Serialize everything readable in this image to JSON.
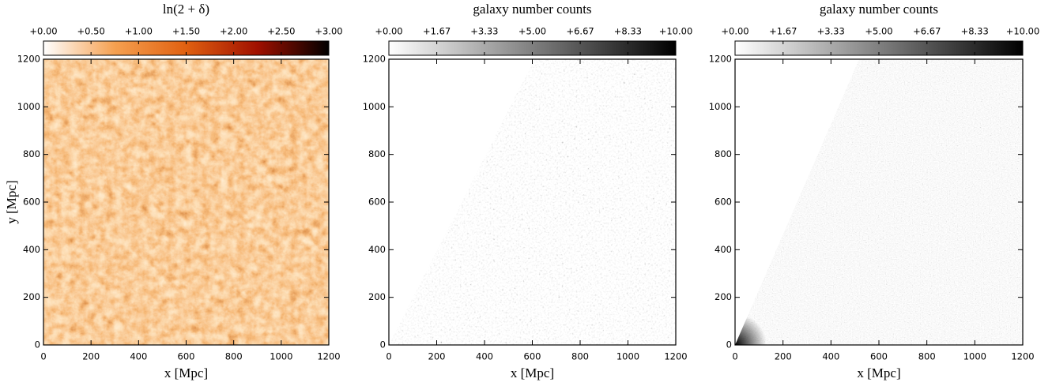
{
  "chart_data": [
    {
      "type": "heatmap",
      "title": "ln(2 + δ)",
      "colorbar": {
        "lim": [
          0,
          3
        ],
        "colormap": [
          "#ffffff",
          "#f5a050",
          "#e06010",
          "#a01000",
          "#000000"
        ],
        "ticks": [
          {
            "value": 0,
            "label": "+0.00"
          },
          {
            "value": 0.5,
            "label": "+0.50"
          },
          {
            "value": 1,
            "label": "+1.00"
          },
          {
            "value": 1.5,
            "label": "+1.50"
          },
          {
            "value": 2,
            "label": "+2.00"
          },
          {
            "value": 2.5,
            "label": "+2.50"
          },
          {
            "value": 3,
            "label": "+3.00"
          }
        ]
      },
      "xlim": [
        0,
        1200
      ],
      "ylim": [
        0,
        1200
      ],
      "xticks": [
        0,
        200,
        400,
        600,
        800,
        1000,
        1200
      ],
      "yticks": [
        0,
        200,
        400,
        600,
        800,
        1000,
        1200
      ],
      "xlabel": "x [Mpc]",
      "ylabel": "y [Mpc]"
    },
    {
      "type": "heatmap",
      "title": "galaxy number counts",
      "colorbar": {
        "lim": [
          0,
          10
        ],
        "colormap": [
          "#ffffff",
          "#000000"
        ],
        "ticks": [
          {
            "value": 0,
            "label": "+0.00"
          },
          {
            "value": 1.67,
            "label": "+1.67"
          },
          {
            "value": 3.33,
            "label": "+3.33"
          },
          {
            "value": 5,
            "label": "+5.00"
          },
          {
            "value": 6.67,
            "label": "+6.67"
          },
          {
            "value": 8.33,
            "label": "+8.33"
          },
          {
            "value": 10,
            "label": "+10.00"
          }
        ]
      },
      "xlim": [
        0,
        1200
      ],
      "ylim": [
        0,
        1200
      ],
      "xticks": [
        0,
        200,
        400,
        600,
        800,
        1000,
        1200
      ],
      "yticks": [
        0,
        200,
        400,
        600,
        800,
        1000,
        1200
      ],
      "xlabel": "x [Mpc]"
    },
    {
      "type": "heatmap",
      "title": "galaxy number counts",
      "colorbar": {
        "lim": [
          0,
          10
        ],
        "colormap": [
          "#ffffff",
          "#000000"
        ],
        "ticks": [
          {
            "value": 0,
            "label": "+0.00"
          },
          {
            "value": 1.67,
            "label": "+1.67"
          },
          {
            "value": 3.33,
            "label": "+3.33"
          },
          {
            "value": 5,
            "label": "+5.00"
          },
          {
            "value": 6.67,
            "label": "+6.67"
          },
          {
            "value": 8.33,
            "label": "+8.33"
          },
          {
            "value": 10,
            "label": "+10.00"
          }
        ]
      },
      "xlim": [
        0,
        1200
      ],
      "ylim": [
        0,
        1200
      ],
      "xticks": [
        0,
        200,
        400,
        600,
        800,
        1000,
        1200
      ],
      "yticks": [
        0,
        200,
        400,
        600,
        800,
        1000,
        1200
      ],
      "xlabel": "x [Mpc]"
    }
  ]
}
